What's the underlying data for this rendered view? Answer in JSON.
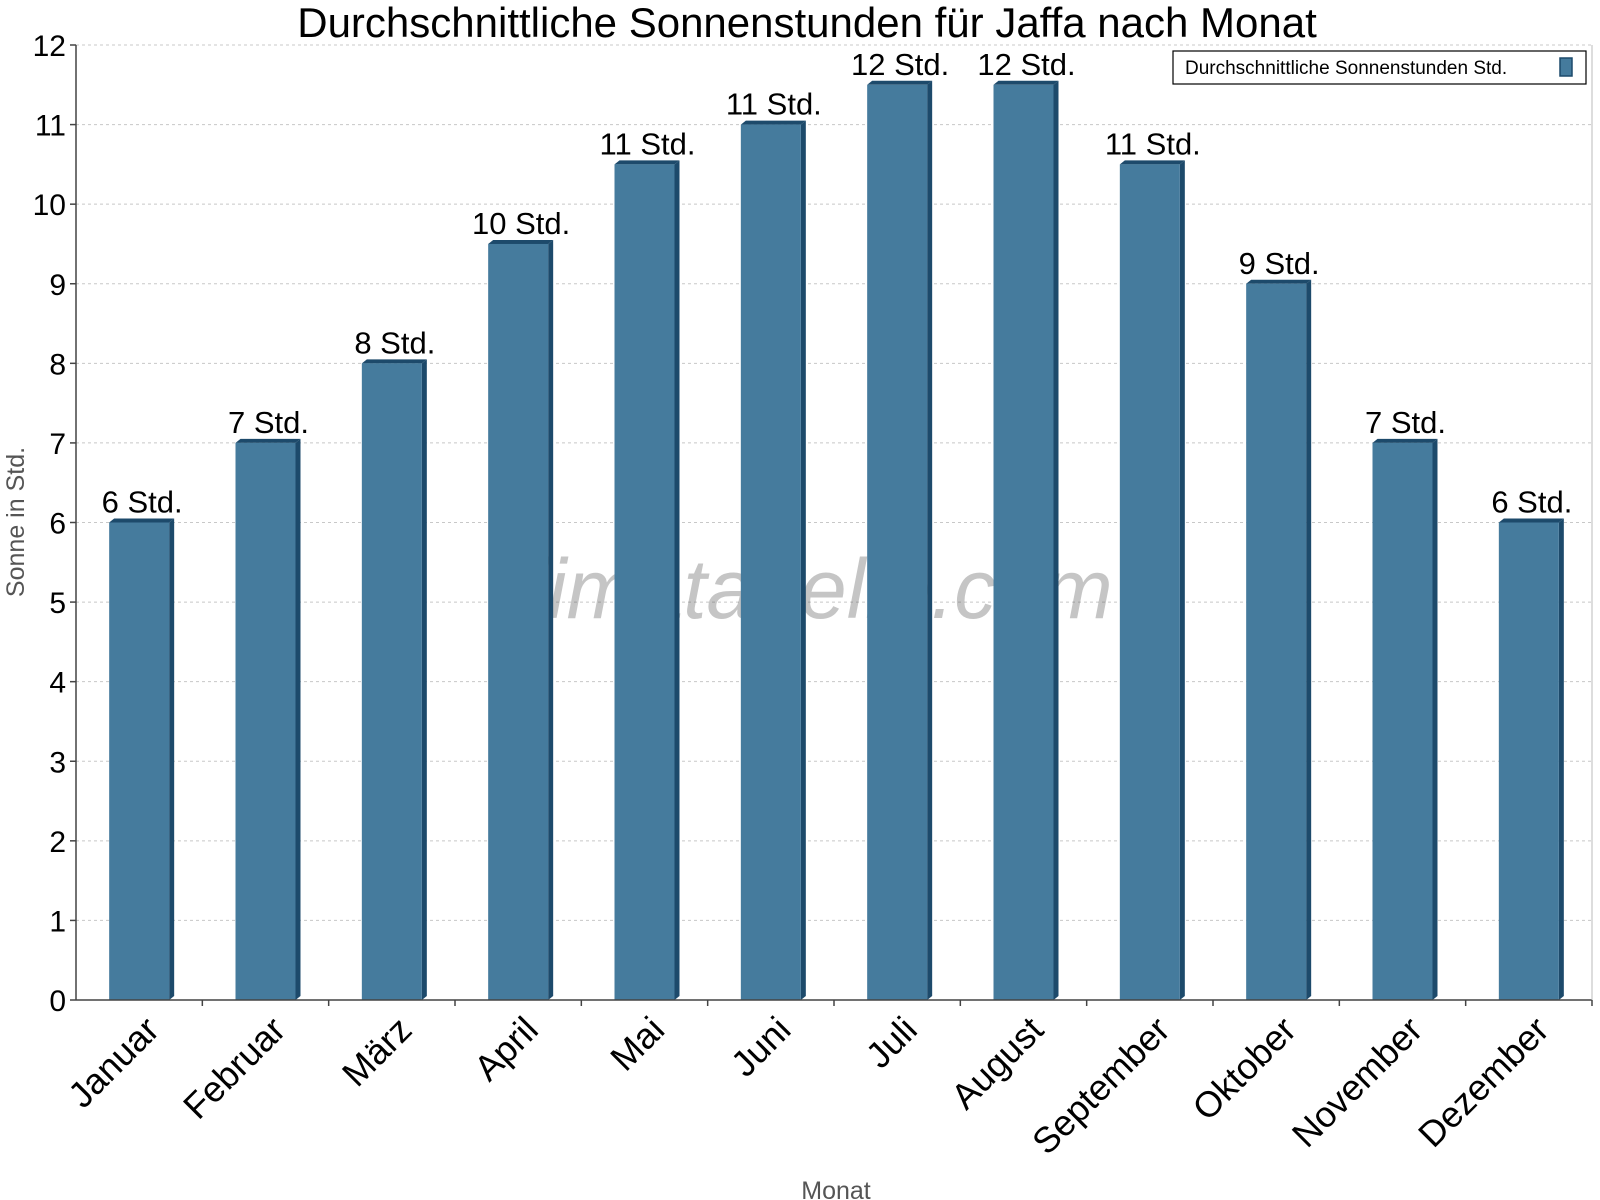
{
  "chart_data": {
    "type": "bar",
    "title": "Durchschnittliche Sonnenstunden für Jaffa nach Monat",
    "xlabel": "Monat",
    "ylabel": "Sonne in Std.",
    "ylim": [
      0,
      12
    ],
    "yticks": [
      0,
      1,
      2,
      3,
      4,
      5,
      6,
      7,
      8,
      9,
      10,
      11,
      12
    ],
    "grid": true,
    "legend_position": "top-right",
    "categories": [
      "Januar",
      "Februar",
      "März",
      "April",
      "Mai",
      "Juni",
      "Juli",
      "August",
      "September",
      "Oktober",
      "November",
      "Dezember"
    ],
    "series": [
      {
        "name": "Durchschnittliche Sonnenstunden Std.",
        "values": [
          6,
          7,
          8,
          9.5,
          10.5,
          11,
          11.5,
          11.5,
          10.5,
          9,
          7,
          6
        ],
        "data_labels": [
          "6 Std.",
          "7 Std.",
          "8 Std.",
          "10 Std.",
          "11 Std.",
          "11 Std.",
          "12 Std.",
          "12 Std.",
          "11 Std.",
          "9 Std.",
          "7 Std.",
          "6 Std."
        ],
        "color": "#457b9d",
        "side_color": "#1d4a6b"
      }
    ],
    "watermark": "klimatabelle.com"
  }
}
